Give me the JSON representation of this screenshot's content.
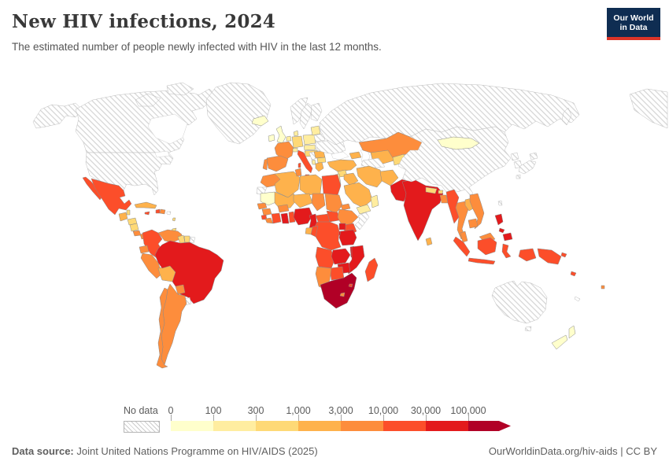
{
  "header": {
    "title": "New HIV infections, 2024",
    "subtitle": "The estimated number of people newly infected with HIV in the last 12 months.",
    "logo": {
      "line1": "Our World",
      "line2": "in Data"
    }
  },
  "legend": {
    "no_data_label": "No data",
    "tick_labels": [
      "0",
      "100",
      "300",
      "1,000",
      "3,000",
      "10,000",
      "30,000",
      "100,000"
    ]
  },
  "footer": {
    "source_label": "Data source:",
    "source_text": " Joint United Nations Programme on HIV/AIDS (2025)",
    "right_text": "OurWorldinData.org/hiv-aids | CC BY"
  },
  "chart_data": {
    "type": "choropleth",
    "title": "New HIV infections, 2024",
    "subtitle": "The estimated number of people newly infected with HIV in the last 12 months.",
    "year": 2024,
    "unit": "new HIV infections (people)",
    "legend_position": "bottom",
    "no_data_style": "diagonal-hatch",
    "bins": [
      {
        "range": "0-100",
        "color": "#ffffcc"
      },
      {
        "range": "100-300",
        "color": "#ffeda0"
      },
      {
        "range": "300-1,000",
        "color": "#fed976"
      },
      {
        "range": "1,000-3,000",
        "color": "#feb24c"
      },
      {
        "range": "3,000-10,000",
        "color": "#fd8d3c"
      },
      {
        "range": "10,000-30,000",
        "color": "#fc4e2a"
      },
      {
        "range": "30,000-100,000",
        "color": "#e31a1c"
      },
      {
        "range": "100,000+",
        "color": "#b10026"
      }
    ],
    "regions": {
      "United States": -1,
      "Canada": -1,
      "Greenland": -1,
      "Russia": -1,
      "China": -1,
      "Japan": -1,
      "North Korea": -1,
      "South Korea": -1,
      "Taiwan": -1,
      "Mongolia": 0,
      "Australia": -1,
      "New Zealand": 0,
      "Papua New Guinea": 5,
      "Solomon Islands": 5,
      "Fiji": 4,
      "New Caledonia": -1,
      "Mexico": 5,
      "Guatemala": 3,
      "Belize": 2,
      "Honduras": 2,
      "Nicaragua": 2,
      "Costa Rica": 4,
      "Panama": 4,
      "Cuba": 3,
      "Jamaica": 5,
      "Haiti": 5,
      "Dominican Republic": 4,
      "Puerto Rico": -1,
      "Barbados": 2,
      "Trinidad and Tobago": 2,
      "Colombia": 5,
      "Venezuela": 4,
      "Guyana": 2,
      "Suriname": 2,
      "French Guiana": -1,
      "Ecuador": 4,
      "Peru": 4,
      "Bolivia": 3,
      "Brazil": 6,
      "Paraguay": 4,
      "Uruguay": -1,
      "Argentina": 4,
      "Chile": 4,
      "Iceland": 0,
      "Ireland": 0,
      "United Kingdom": 0,
      "Norway": -1,
      "Sweden": -1,
      "Finland": -1,
      "Denmark": 1,
      "Netherlands": 1,
      "Germany": 2,
      "Poland": 1,
      "Czechia": 1,
      "Hungary": 2,
      "France": 4,
      "Spain": 4,
      "Portugal": 4,
      "Italy": 5,
      "Switzerland": 1,
      "Serbia": -1,
      "Albania": 1,
      "Greece": 3,
      "Romania": 3,
      "Bulgaria": 2,
      "Lithuania": 1,
      "Belarus": -1,
      "Ukraine": -1,
      "Kazakhstan": 4,
      "Uzbekistan": 3,
      "Turkmenistan": -1,
      "Kyrgyzstan": 2,
      "Azerbaijan": 3,
      "Turkey": 3,
      "Syria": 2,
      "Iraq": 3,
      "Israel": 1,
      "Saudi Arabia": 3,
      "Yemen": 1,
      "Oman": 1,
      "Iran": 3,
      "Afghanistan": 3,
      "Pakistan": 6,
      "India": 6,
      "Nepal": 2,
      "Bhutan": 2,
      "Bangladesh": 4,
      "Sri Lanka": 3,
      "Myanmar": 5,
      "Thailand": 4,
      "Laos": 3,
      "Vietnam": 4,
      "Cambodia": 4,
      "Malaysia": 4,
      "Indonesia": 5,
      "Philippines": 6,
      "Morocco": 4,
      "Western Sahara": -1,
      "Algeria": 3,
      "Tunisia": 4,
      "Libya": 3,
      "Egypt": 5,
      "Mauritania": 0,
      "Mali": 3,
      "Niger": 3,
      "Chad": 4,
      "Sudan": 4,
      "Eritrea": 4,
      "Senegal": 4,
      "Guinea": 4,
      "Sierra Leone": 5,
      "Liberia": 4,
      "Cote d'Ivoire": 5,
      "Burkina Faso": 4,
      "Ghana": 6,
      "Benin": 5,
      "Nigeria": 6,
      "Cameroon": 6,
      "Central African Republic": 5,
      "South Sudan": 5,
      "Ethiopia": 4,
      "Somalia": -1,
      "Kenya": 5,
      "Uganda": 6,
      "Rwanda": 6,
      "Democratic Republic of Congo": 5,
      "Congo": 5,
      "Gabon": 3,
      "Tanzania": 6,
      "Angola": 5,
      "Zambia": 6,
      "Malawi": 6,
      "Mozambique": 6,
      "Zimbabwe": 6,
      "Botswana": 5,
      "Namibia": 4,
      "South Africa": 7,
      "Lesotho": 4,
      "Eswatini": 5,
      "Madagascar": 5
    }
  }
}
